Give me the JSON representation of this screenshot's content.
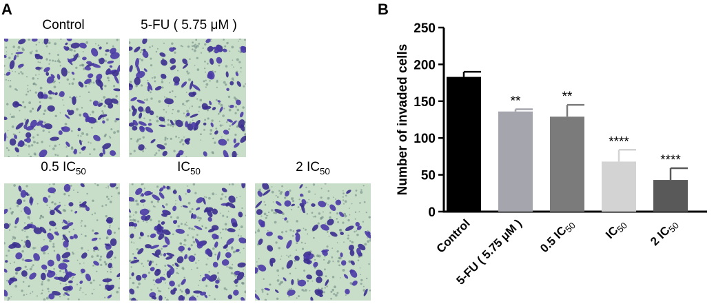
{
  "panel_a": {
    "letter": "A",
    "images": [
      {
        "label": "Control"
      },
      {
        "label": "5-FU ( 5.75 μM )"
      },
      {
        "label_main": "0.5 IC",
        "label_sub": "50"
      },
      {
        "label_main": "IC",
        "label_sub": "50"
      },
      {
        "label_main": "2 IC",
        "label_sub": "50"
      }
    ]
  },
  "panel_b": {
    "letter": "B"
  },
  "chart_data": {
    "type": "bar",
    "categories": [
      "Control",
      "5-FU ( 5.75 μM )",
      "0.5 IC50",
      "IC50",
      "2 IC50"
    ],
    "category_labels": [
      {
        "main": "Control",
        "sub": ""
      },
      {
        "main": "5-FU ( 5.75 μM )",
        "sub": ""
      },
      {
        "main": "0.5 IC",
        "sub": "50"
      },
      {
        "main": "IC",
        "sub": "50"
      },
      {
        "main": "2 IC",
        "sub": "50"
      }
    ],
    "values": [
      183,
      136,
      129,
      68,
      43
    ],
    "errors": [
      7,
      3,
      16,
      16,
      16
    ],
    "significance": [
      "",
      "**",
      "**",
      "****",
      "****"
    ],
    "bar_colors": [
      "#000000",
      "#a5a5ad",
      "#7b7b7b",
      "#d3d3d3",
      "#595959"
    ],
    "ylabel": "Number of invaded cells",
    "ylim": [
      0,
      250
    ],
    "yticks": [
      0,
      50,
      100,
      150,
      200,
      250
    ]
  }
}
